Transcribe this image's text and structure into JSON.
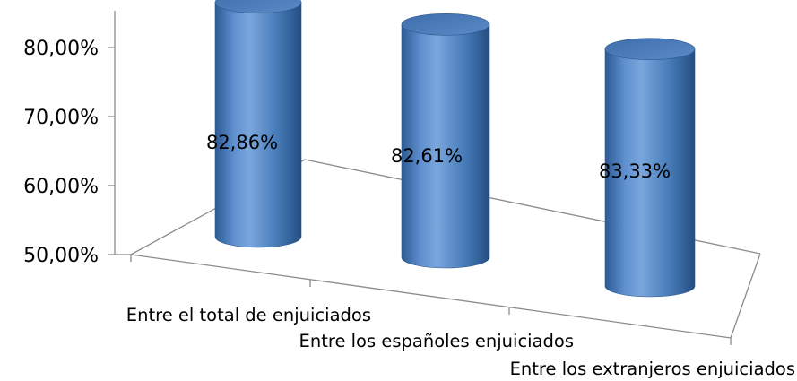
{
  "chart_data": {
    "type": "bar",
    "style": "3d-cylinder",
    "categories": [
      "Entre el total de enjuiciados",
      "Entre los españoles enjuiciados",
      "Entre los extranjeros enjuiciados"
    ],
    "series": [
      {
        "values": [
          82.86,
          82.61,
          83.33
        ],
        "color": "#4a7ebb"
      }
    ],
    "data_labels": [
      "82,86%",
      "82,61%",
      "83,33%"
    ],
    "y_ticks": [
      "50,00%",
      "60,00%",
      "70,00%",
      "80,00%"
    ],
    "ylim": [
      50,
      80
    ],
    "title": "",
    "xlabel": "",
    "ylabel": "",
    "grid": false,
    "legend": "none"
  }
}
